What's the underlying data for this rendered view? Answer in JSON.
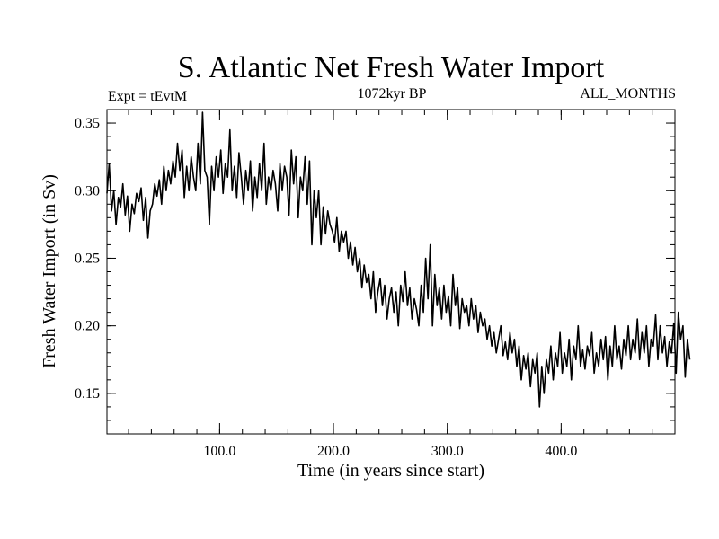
{
  "chart_data": {
    "type": "line",
    "title": "S. Atlantic Net Fresh Water Import",
    "subtitle_left": "Expt = tEvtM",
    "subtitle_center": "1072kyr BP",
    "subtitle_right": "ALL_MONTHS",
    "xlabel": "Time (in years since start)",
    "ylabel": "Fresh Water Import (in Sv)",
    "xlim": [
      1,
      500
    ],
    "ylim": [
      0.12,
      0.36
    ],
    "xticks": [
      100,
      200,
      300,
      400
    ],
    "xtick_labels": [
      "100.0",
      "200.0",
      "300.0",
      "400.0"
    ],
    "yticks": [
      0.15,
      0.2,
      0.25,
      0.3,
      0.35
    ],
    "ytick_labels": [
      "0.15",
      "0.20",
      "0.25",
      "0.30",
      "0.35"
    ],
    "grid": false,
    "series": [
      {
        "name": "Fresh Water Import",
        "color": "#000000",
        "x_start": 1,
        "x_step": 2,
        "values": [
          0.298,
          0.32,
          0.285,
          0.3,
          0.275,
          0.295,
          0.288,
          0.305,
          0.282,
          0.296,
          0.27,
          0.29,
          0.283,
          0.298,
          0.292,
          0.302,
          0.278,
          0.295,
          0.265,
          0.285,
          0.29,
          0.305,
          0.296,
          0.308,
          0.29,
          0.318,
          0.3,
          0.315,
          0.305,
          0.322,
          0.31,
          0.335,
          0.315,
          0.33,
          0.295,
          0.318,
          0.3,
          0.325,
          0.31,
          0.3,
          0.335,
          0.305,
          0.358,
          0.315,
          0.31,
          0.275,
          0.318,
          0.3,
          0.325,
          0.31,
          0.33,
          0.298,
          0.32,
          0.31,
          0.345,
          0.3,
          0.318,
          0.295,
          0.328,
          0.31,
          0.29,
          0.315,
          0.3,
          0.322,
          0.285,
          0.31,
          0.295,
          0.32,
          0.3,
          0.335,
          0.29,
          0.31,
          0.3,
          0.315,
          0.305,
          0.285,
          0.32,
          0.3,
          0.318,
          0.31,
          0.282,
          0.33,
          0.305,
          0.325,
          0.28,
          0.31,
          0.3,
          0.325,
          0.29,
          0.322,
          0.26,
          0.3,
          0.28,
          0.3,
          0.26,
          0.288,
          0.268,
          0.285,
          0.275,
          0.27,
          0.262,
          0.28,
          0.255,
          0.27,
          0.262,
          0.27,
          0.25,
          0.262,
          0.245,
          0.258,
          0.24,
          0.25,
          0.228,
          0.245,
          0.232,
          0.238,
          0.22,
          0.24,
          0.21,
          0.225,
          0.235,
          0.215,
          0.23,
          0.205,
          0.22,
          0.228,
          0.21,
          0.225,
          0.2,
          0.23,
          0.218,
          0.24,
          0.215,
          0.228,
          0.205,
          0.22,
          0.212,
          0.2,
          0.23,
          0.21,
          0.25,
          0.22,
          0.26,
          0.2,
          0.238,
          0.215,
          0.228,
          0.205,
          0.23,
          0.21,
          0.222,
          0.2,
          0.238,
          0.215,
          0.228,
          0.198,
          0.22,
          0.21,
          0.215,
          0.2,
          0.22,
          0.205,
          0.215,
          0.195,
          0.21,
          0.2,
          0.205,
          0.19,
          0.2,
          0.185,
          0.195,
          0.18,
          0.19,
          0.2,
          0.178,
          0.188,
          0.175,
          0.195,
          0.18,
          0.19,
          0.17,
          0.185,
          0.16,
          0.178,
          0.168,
          0.18,
          0.155,
          0.175,
          0.165,
          0.18,
          0.14,
          0.17,
          0.15,
          0.175,
          0.165,
          0.185,
          0.16,
          0.18,
          0.17,
          0.195,
          0.165,
          0.18,
          0.17,
          0.19,
          0.16,
          0.185,
          0.175,
          0.2,
          0.17,
          0.182,
          0.168,
          0.185,
          0.178,
          0.195,
          0.165,
          0.18,
          0.17,
          0.19,
          0.175,
          0.192,
          0.16,
          0.185,
          0.17,
          0.2,
          0.175,
          0.185,
          0.168,
          0.19,
          0.178,
          0.2,
          0.175,
          0.19,
          0.18,
          0.205,
          0.175,
          0.195,
          0.18,
          0.2,
          0.17,
          0.19,
          0.185,
          0.208,
          0.175,
          0.2,
          0.18,
          0.192,
          0.17,
          0.188,
          0.18,
          0.202,
          0.165,
          0.21,
          0.19,
          0.2,
          0.162,
          0.19,
          0.175
        ]
      }
    ]
  }
}
